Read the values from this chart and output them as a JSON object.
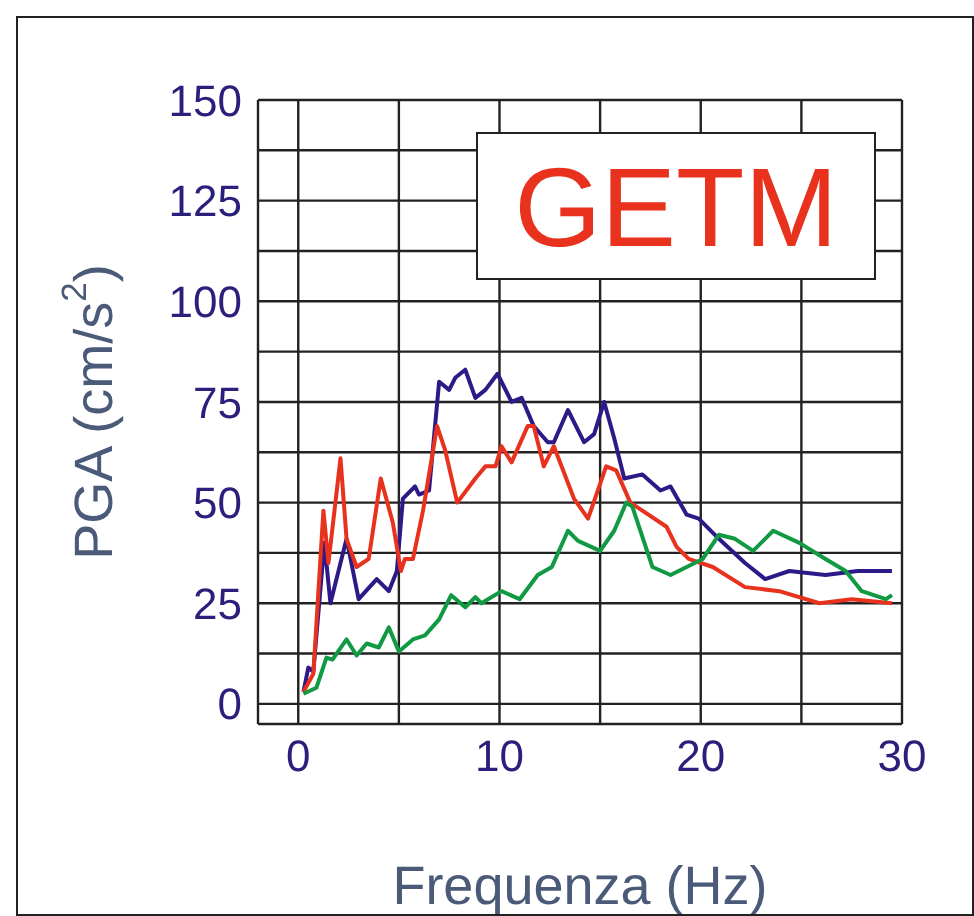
{
  "chart_data": {
    "type": "line",
    "xlabel": "Frequenza (Hz)",
    "ylabel": "PGA (cm/s$^{2}$)",
    "annotations": [
      "GETM"
    ],
    "xlim": [
      -2,
      30
    ],
    "ylim": [
      -5,
      150
    ],
    "xticks": [
      0,
      {
        "value": 5,
        "label": null
      },
      10,
      {
        "value": 15,
        "label": null
      },
      20,
      {
        "value": 25,
        "label": null
      },
      30
    ],
    "yticks": [
      0,
      {
        "value": 12.5,
        "label": null
      },
      25,
      {
        "value": 37.5,
        "label": null
      },
      50,
      {
        "value": 62.5,
        "label": null
      },
      75,
      {
        "value": 87.5,
        "label": null
      },
      100,
      {
        "value": 112.5,
        "label": null
      },
      125,
      {
        "value": 137.5,
        "label": null
      },
      150
    ],
    "grid": true,
    "series": [
      {
        "color": "#2e1a87",
        "x": [
          0.26,
          0.5,
          0.75,
          1.3,
          1.6,
          2.4,
          3.0,
          3.9,
          4.5,
          4.9,
          5.2,
          5.8,
          6.0,
          6.5,
          7.0,
          7.5,
          7.8,
          8.3,
          8.8,
          9.3,
          9.9,
          10.6,
          11.1,
          11.7,
          12.4,
          12.7,
          13.4,
          14.2,
          14.7,
          15.2,
          15.7,
          16.2,
          17.1,
          18.0,
          18.5,
          19.3,
          19.9,
          20.9,
          22.2,
          23.2,
          24.4,
          26.2,
          27.8,
          29.5
        ],
        "values": [
          3,
          9,
          8,
          40,
          25,
          41,
          26,
          31,
          28,
          33,
          51,
          54,
          52,
          53,
          80,
          78,
          81,
          83,
          76,
          78,
          82,
          75,
          76,
          69,
          65,
          65,
          73,
          65,
          67,
          75,
          66,
          56,
          57,
          53,
          54,
          47,
          46,
          41,
          35,
          31,
          33,
          32,
          33,
          33
        ]
      },
      {
        "color": "#e8321e",
        "x": [
          0.26,
          0.75,
          1.25,
          1.5,
          2.1,
          2.4,
          2.9,
          3.5,
          4.1,
          4.7,
          5.1,
          5.3,
          5.7,
          6.2,
          6.9,
          7.3,
          7.9,
          8.8,
          9.3,
          9.8,
          10.1,
          10.6,
          11.4,
          11.7,
          12.2,
          12.7,
          13.7,
          14.4,
          15.3,
          15.8,
          16.5,
          17.1,
          18.3,
          18.8,
          19.4,
          20.6,
          22.2,
          23.9,
          25.9,
          27.5,
          29.5
        ],
        "values": [
          3,
          7.5,
          48,
          35,
          61,
          41,
          34,
          36,
          56,
          45,
          33,
          36,
          36,
          48,
          69,
          63,
          50,
          56,
          59,
          59,
          64,
          60,
          69,
          69,
          59,
          64,
          51,
          46,
          59,
          58,
          50,
          48,
          44,
          39,
          36,
          34,
          29,
          28,
          25,
          26,
          25
        ]
      },
      {
        "color": "#119944",
        "x": [
          0.26,
          0.9,
          1.4,
          1.7,
          2.4,
          2.9,
          3.4,
          4.0,
          4.5,
          5.0,
          5.7,
          6.3,
          7.0,
          7.6,
          8.3,
          8.8,
          9.1,
          10.1,
          11.0,
          11.9,
          12.6,
          13.4,
          13.9,
          15.0,
          15.7,
          16.3,
          16.6,
          17.6,
          18.5,
          19.3,
          20.1,
          20.9,
          21.7,
          22.6,
          23.6,
          24.9,
          26.2,
          27.2,
          28.0,
          29.2,
          29.5
        ],
        "values": [
          2.5,
          4,
          11.5,
          11,
          16,
          12,
          15,
          14,
          19,
          13,
          16,
          17,
          21,
          27,
          24,
          26.5,
          25,
          28,
          26,
          32,
          34,
          43,
          40.5,
          38,
          43,
          50,
          49,
          34,
          32,
          34,
          36,
          42,
          41,
          38,
          43,
          40,
          36,
          33,
          28,
          26,
          27
        ]
      }
    ]
  }
}
